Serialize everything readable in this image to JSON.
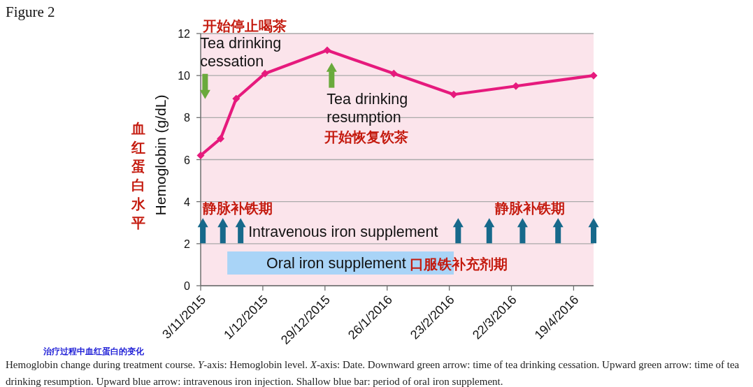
{
  "chart_data": {
    "type": "line",
    "title": "Figure 2",
    "ylabel": "Hemoglobin (g/dL)",
    "xlim": [
      "2015-11-03",
      "2016-04-28"
    ],
    "xticks": [
      {
        "value": "2015-11-03",
        "label": "3/11/2015"
      },
      {
        "value": "2015-12-01",
        "label": "1/12/2015"
      },
      {
        "value": "2015-12-29",
        "label": "29/12/2015"
      },
      {
        "value": "2016-01-26",
        "label": "26/1/2016"
      },
      {
        "value": "2016-02-23",
        "label": "23/2/2016"
      },
      {
        "value": "2016-03-22",
        "label": "22/3/2016"
      },
      {
        "value": "2016-04-19",
        "label": "19/4/2016"
      }
    ],
    "ylim": [
      0,
      12
    ],
    "yticks": [
      0,
      2,
      4,
      6,
      8,
      10,
      12
    ],
    "grid": "y",
    "series": [
      {
        "color": "#e61a7d",
        "marker": "diamond",
        "x": [
          "2015-11-03",
          "2015-11-12",
          "2015-11-19",
          "2015-12-02",
          "2015-12-30",
          "2016-01-29",
          "2016-02-25",
          "2016-03-24",
          "2016-04-28"
        ],
        "values": [
          6.2,
          7.0,
          8.9,
          10.1,
          11.2,
          10.1,
          9.1,
          9.5,
          10.0
        ]
      },
      {
        "type": "scatter",
        "name": "Tea drinking cessation",
        "color": "#6aaa3c",
        "marker": "triangle",
        "x": [
          "2015-11-05"
        ],
        "values": [
          9.1
        ]
      },
      {
        "type": "scatter",
        "name": "Tea drinking resumption",
        "color": "#6aaa3c",
        "marker": "triangle",
        "x": [
          "2016-01-01"
        ],
        "values": [
          10.4
        ]
      },
      {
        "type": "scatter",
        "name": "Intravenous iron supplement",
        "color": "#17698b",
        "marker": "triangle",
        "x": [
          "2015-11-04",
          "2015-11-13",
          "2015-11-21",
          "2016-02-27",
          "2016-03-12",
          "2016-03-27",
          "2016-04-12",
          "2016-04-28"
        ],
        "values": [
          3.0,
          3.0,
          3.0,
          3.0,
          3.0,
          3.0,
          3.0,
          3.0
        ]
      }
    ],
    "bands": [
      {
        "axis": "x",
        "from": "2015-11-15",
        "to": "2016-02-25",
        "label": "Oral iron supplement",
        "color": "#a9d4f7"
      }
    ],
    "annotations": [
      "开始停止喝茶",
      "开始恢复饮茶",
      "静脉补铁期",
      "静脉补铁期",
      "口服铁补充剂期",
      "血红蛋白水平",
      "治疗过程中血红蛋白的变化",
      "Hemoglobin change during treatment course. *Y*-axis: Hemoglobin level. *X*-axis: Date. Downward green arrow: time of tea drinking cessation. Upward green arrow: time of tea drinking resumption. Upward blue arrow: intravenous iron injection. Shallow blue bar: period of oral iron supplement."
    ]
  }
}
